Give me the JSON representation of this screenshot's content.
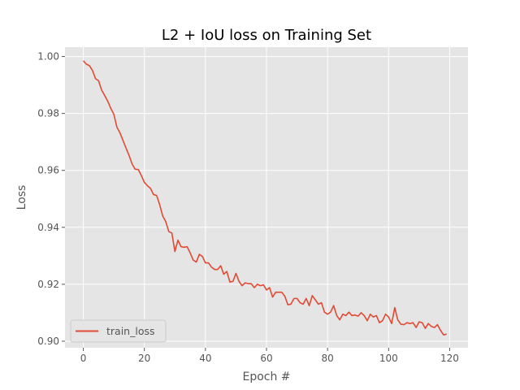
{
  "chart_data": {
    "type": "line",
    "title": "L2 + IoU loss on Training Set",
    "xlabel": "Epoch #",
    "ylabel": "Loss",
    "xlim": [
      -6,
      126
    ],
    "ylim": [
      0.8977,
      1.0033
    ],
    "x_ticks": [
      0,
      20,
      40,
      60,
      80,
      100,
      120
    ],
    "y_ticks": [
      0.9,
      0.92,
      0.94,
      0.96,
      0.98,
      1.0
    ],
    "x_tick_labels": [
      "0",
      "20",
      "40",
      "60",
      "80",
      "100",
      "120"
    ],
    "y_tick_labels": [
      "0.90",
      "0.92",
      "0.94",
      "0.96",
      "0.98",
      "1.00"
    ],
    "grid": true,
    "background": "#e5e5e5",
    "legend_position": "lower-left",
    "series": [
      {
        "name": "train_loss",
        "color": "#e24a33",
        "x": [
          0,
          1,
          2,
          3,
          4,
          5,
          6,
          7,
          8,
          9,
          10,
          11,
          12,
          13,
          14,
          15,
          16,
          17,
          18,
          19,
          20,
          21,
          22,
          23,
          24,
          25,
          26,
          27,
          28,
          29,
          30,
          31,
          32,
          33,
          34,
          35,
          36,
          37,
          38,
          39,
          40,
          41,
          42,
          43,
          44,
          45,
          46,
          47,
          48,
          49,
          50,
          51,
          52,
          53,
          54,
          55,
          56,
          57,
          58,
          59,
          60,
          61,
          62,
          63,
          64,
          65,
          66,
          67,
          68,
          69,
          70,
          71,
          72,
          73,
          74,
          75,
          76,
          77,
          78,
          79,
          80,
          81,
          82,
          83,
          84,
          85,
          86,
          87,
          88,
          89,
          90,
          91,
          92,
          93,
          94,
          95,
          96,
          97,
          98,
          99,
          100,
          101,
          102,
          103,
          104,
          105,
          106,
          107,
          108,
          109,
          110,
          111,
          112,
          113,
          114,
          115,
          116,
          117,
          118,
          119
        ],
        "values": [
          0.9985,
          0.9973,
          0.9968,
          0.9951,
          0.9922,
          0.9915,
          0.9882,
          0.9863,
          0.9843,
          0.9818,
          0.9797,
          0.9752,
          0.9732,
          0.9705,
          0.9678,
          0.9652,
          0.9622,
          0.9604,
          0.9603,
          0.9582,
          0.9558,
          0.9546,
          0.9537,
          0.9515,
          0.9512,
          0.948,
          0.944,
          0.942,
          0.9385,
          0.938,
          0.9315,
          0.9355,
          0.9332,
          0.933,
          0.9332,
          0.931,
          0.9285,
          0.9278,
          0.9305,
          0.9298,
          0.9275,
          0.9275,
          0.926,
          0.9252,
          0.9252,
          0.9265,
          0.9235,
          0.9245,
          0.9208,
          0.921,
          0.9238,
          0.921,
          0.9195,
          0.9205,
          0.9202,
          0.9202,
          0.9188,
          0.92,
          0.9195,
          0.9198,
          0.918,
          0.9188,
          0.9155,
          0.9172,
          0.9172,
          0.9172,
          0.9158,
          0.9128,
          0.913,
          0.915,
          0.915,
          0.9135,
          0.913,
          0.915,
          0.9125,
          0.916,
          0.9145,
          0.913,
          0.9135,
          0.9102,
          0.9095,
          0.9102,
          0.9125,
          0.909,
          0.9075,
          0.9095,
          0.909,
          0.9102,
          0.909,
          0.9092,
          0.9088,
          0.91,
          0.909,
          0.9072,
          0.9095,
          0.9085,
          0.909,
          0.9065,
          0.9072,
          0.9095,
          0.9085,
          0.9062,
          0.9118,
          0.9075,
          0.906,
          0.9058,
          0.9065,
          0.9062,
          0.9065,
          0.9048,
          0.9068,
          0.9065,
          0.9045,
          0.9062,
          0.9052,
          0.9048,
          0.9058,
          0.9038,
          0.9022,
          0.9025
        ]
      }
    ]
  }
}
